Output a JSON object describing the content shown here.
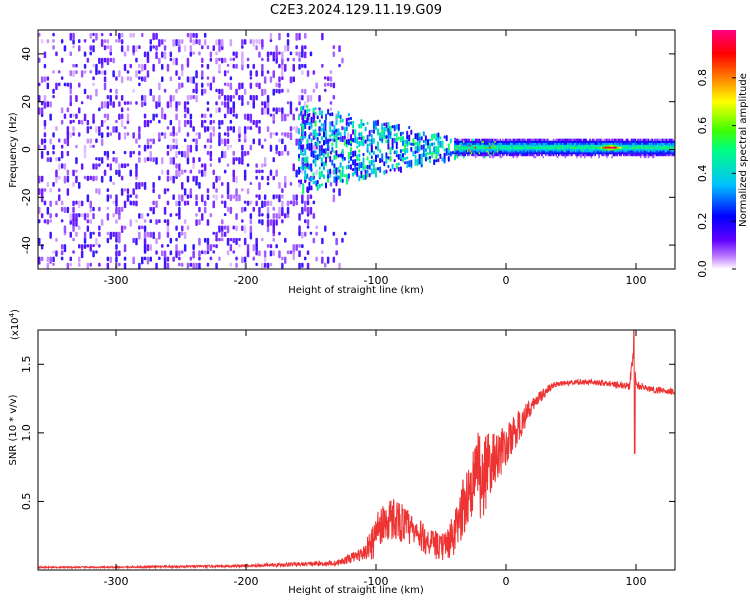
{
  "title": "C2E3.2024.129.11.19.G09",
  "chart_data": [
    {
      "type": "heatmap",
      "name": "spectrogram",
      "xlabel": "Height of straight line (km)",
      "ylabel": "Frequency (Hz)",
      "xlim": [
        -360,
        130
      ],
      "ylim": [
        -50,
        50
      ],
      "xticks": [
        -300,
        -200,
        -100,
        0,
        100
      ],
      "yticks": [
        -40,
        -20,
        0,
        20,
        40
      ],
      "colorbar": {
        "label": "Normalized spectral amplitude",
        "range": [
          0,
          1
        ],
        "ticks": [
          0.0,
          0.2,
          0.4,
          0.6,
          0.8
        ],
        "colormap": [
          "#ffffff",
          "#c080ff",
          "#6000ff",
          "#0000ff",
          "#00c0ff",
          "#00ff80",
          "#40ff00",
          "#ffff00",
          "#ff8000",
          "#ff0000",
          "#ff0080"
        ]
      },
      "features": [
        {
          "x_range": [
            -360,
            -120
          ],
          "freq_range": [
            -50,
            48
          ],
          "amplitude": 0.08,
          "description": "noise"
        },
        {
          "x_range": [
            -160,
            -40
          ],
          "freq_range": [
            -15,
            18
          ],
          "amplitude": 0.3
        },
        {
          "x_range": [
            -40,
            130
          ],
          "freq_range": [
            -2,
            3
          ],
          "amplitude": 0.5,
          "peak_x": 80,
          "peak_amplitude": 0.95
        }
      ]
    },
    {
      "type": "line",
      "name": "snr",
      "xlabel": "Height of straight line (km)",
      "ylabel": "SNR (10 * v/v)",
      "multiplier_label": "(x10",
      "multiplier_exponent": "4",
      "multiplier_close": ")",
      "xlim": [
        -360,
        130
      ],
      "ylim": [
        0,
        1.75
      ],
      "xticks": [
        -300,
        -200,
        -100,
        0,
        100
      ],
      "yticks": [
        0.5,
        1.0,
        1.5
      ],
      "ytick_labels": [
        "0.5",
        "1.0",
        "1.5"
      ],
      "line_color": "#ee3333",
      "series": [
        {
          "name": "SNR",
          "x": [
            -360,
            -300,
            -200,
            -130,
            -110,
            -95,
            -85,
            -70,
            -50,
            -40,
            -30,
            -20,
            -10,
            0,
            10,
            20,
            30,
            40,
            60,
            80,
            95,
            98,
            100,
            110,
            130
          ],
          "values": [
            0.02,
            0.02,
            0.03,
            0.05,
            0.12,
            0.28,
            0.32,
            0.22,
            0.12,
            0.18,
            0.45,
            0.65,
            0.8,
            0.9,
            1.05,
            1.2,
            1.3,
            1.36,
            1.37,
            1.36,
            1.34,
            1.6,
            1.35,
            1.32,
            1.3
          ],
          "noise_amplitude": [
            0.005,
            0.005,
            0.01,
            0.02,
            0.05,
            0.2,
            0.2,
            0.15,
            0.12,
            0.2,
            0.3,
            0.35,
            0.2,
            0.15,
            0.12,
            0.05,
            0.04,
            0.02,
            0.02,
            0.02,
            0.03,
            0.1,
            0.03,
            0.03,
            0.02
          ]
        }
      ]
    }
  ]
}
